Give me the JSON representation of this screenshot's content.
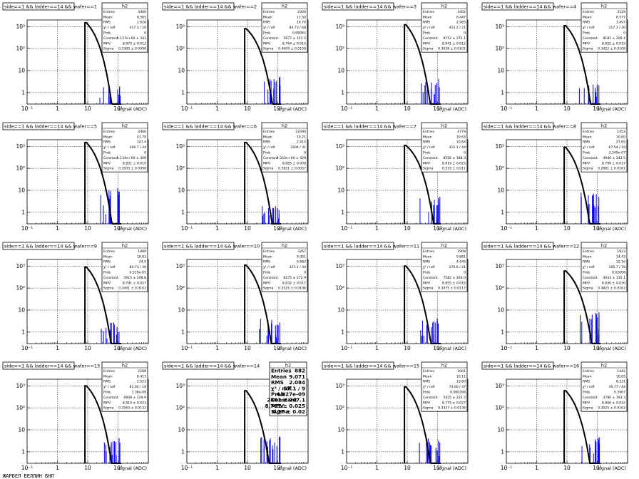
{
  "footer_text": "ЖАРБЕЛ БЕЛЛИН БНЛ",
  "chart_data": [
    {
      "type": "histogram",
      "title": "side==1 && ladder==14 && wafer==1",
      "stats_title": "h2",
      "xlabel": "signal (ADC)",
      "x_scale": "log",
      "y_scale": "log",
      "xlim": [
        0.1,
        1000
      ],
      "ylim": [
        0.3,
        2000
      ],
      "grid": true,
      "stats": [
        [
          "Entries",
          "4400"
        ],
        [
          "Mean",
          "8.565"
        ],
        [
          "RMS",
          "2.628"
        ],
        [
          "χ² / ndf",
          "417.3 / 26"
        ],
        [
          "Prob",
          "0"
        ],
        [
          "Constant",
          "1.127e+04 ± 341"
        ],
        [
          "MPV",
          "8.873 ± 0.012"
        ],
        [
          "Sigma",
          "0.3385 ± 0.0090"
        ]
      ],
      "fit": {
        "mpv": 9.0,
        "sigma": 0.34,
        "peak": 1500
      },
      "tail": [
        [
          8,
          0.6
        ],
        [
          8.8,
          0.1
        ]
      ]
    },
    {
      "type": "histogram",
      "title": "side==1 && ladder==14 && wafer==2",
      "stats_title": "h2",
      "xlabel": "signal (ADC)",
      "x_scale": "log",
      "y_scale": "log",
      "xlim": [
        0.1,
        1000
      ],
      "ylim": [
        0.3,
        2000
      ],
      "grid": true,
      "stats": [
        [
          "Entries",
          "2300"
        ],
        [
          "Mean",
          "11.50"
        ],
        [
          "RMS",
          "10.70"
        ],
        [
          "χ² / ndf",
          "84.73 / 68"
        ],
        [
          "Prob",
          "0.08062"
        ],
        [
          "Constant",
          "5877 ± 151.5"
        ],
        [
          "MPV",
          "8.764 ± 0.015"
        ],
        [
          "Sigma",
          "0.4609 ± 0.0150"
        ]
      ],
      "fit": {
        "mpv": 9.0,
        "sigma": 0.46,
        "peak": 800
      },
      "tail": [
        [
          8,
          2
        ],
        [
          14,
          0.2
        ]
      ]
    },
    {
      "type": "histogram",
      "title": "side==1 && ladder==14 && wafer==3",
      "stats_title": "h2",
      "xlabel": "signal (ADC)",
      "x_scale": "log",
      "y_scale": "log",
      "xlim": [
        0.1,
        1000
      ],
      "ylim": [
        0.3,
        2000
      ],
      "grid": true,
      "stats": [
        [
          "Entries",
          "3402"
        ],
        [
          "Mean",
          "8.447"
        ],
        [
          "RMS",
          "2.985"
        ],
        [
          "χ² / ndf",
          "413.2 / 21"
        ],
        [
          "Prob",
          "0"
        ],
        [
          "Constant",
          "9712 ± 272.1"
        ],
        [
          "MPV",
          "8.941 ± 0.012"
        ],
        [
          "Sigma",
          "0.3038 ± 0.0101"
        ]
      ],
      "fit": {
        "mpv": 9.0,
        "sigma": 0.3,
        "peak": 1200
      },
      "tail": [
        [
          8,
          1.5
        ],
        [
          12,
          0.15
        ]
      ]
    },
    {
      "type": "histogram",
      "title": "side==1 && ladder==14 && wafer==4",
      "stats_title": "h2",
      "xlabel": "signal (ADC)",
      "x_scale": "log",
      "y_scale": "log",
      "xlim": [
        0.1,
        1000
      ],
      "ylim": [
        0.3,
        2000
      ],
      "grid": true,
      "stats": [
        [
          "Entries",
          "3129"
        ],
        [
          "Mean",
          "8.577"
        ],
        [
          "RMS",
          "3.497"
        ],
        [
          "χ² / ndf",
          "217.3 / 26"
        ],
        [
          "Prob",
          "0"
        ],
        [
          "Constant",
          "8181 ± 209.4"
        ],
        [
          "MPV",
          "8.855 ± 0.015"
        ],
        [
          "Sigma",
          "0.3422 ± 0.0108"
        ]
      ],
      "fit": {
        "mpv": 9.0,
        "sigma": 0.34,
        "peak": 1100
      },
      "tail": [
        [
          8,
          1
        ],
        [
          12,
          0.1
        ]
      ]
    },
    {
      "type": "histogram",
      "title": "side==1 && ladder==14 && wafer==5",
      "stats_title": "h2",
      "xlabel": "signal (ADC)",
      "x_scale": "log",
      "y_scale": "log",
      "xlim": [
        0.1,
        1000
      ],
      "ylim": [
        0.3,
        2000
      ],
      "grid": true,
      "stats": [
        [
          "Entries",
          "4466"
        ],
        [
          "Mean",
          "41.79"
        ],
        [
          "RMS",
          "147.4"
        ],
        [
          "χ² / ndf",
          "306.7 / 44"
        ],
        [
          "Prob",
          "0"
        ],
        [
          "Constant",
          "1.134e+04 ± 309"
        ],
        [
          "MPV",
          "8.851 ± 0.010"
        ],
        [
          "Sigma",
          "0.3505 ± 0.0090"
        ]
      ],
      "fit": {
        "mpv": 9.0,
        "sigma": 0.35,
        "peak": 1500
      },
      "tail": [
        [
          8,
          5
        ],
        [
          8.8,
          0.4
        ]
      ]
    },
    {
      "type": "histogram",
      "title": "side==1 && ladder==14 && wafer==6",
      "stats_title": "h2",
      "xlabel": "signal (ADC)",
      "x_scale": "log",
      "y_scale": "log",
      "xlim": [
        0.1,
        1000
      ],
      "ylim": [
        0.3,
        2000
      ],
      "grid": true,
      "stats": [
        [
          "Entries",
          "12094"
        ],
        [
          "Mean",
          "10.21"
        ],
        [
          "RMS",
          "2.615"
        ],
        [
          "χ² / ndf",
          "3306 / 31"
        ],
        [
          "Prob",
          "0"
        ],
        [
          "Constant",
          "2.353e+04 ± 429"
        ],
        [
          "MPV",
          "8.885 ± 0.008"
        ],
        [
          "Sigma",
          "0.3821 ± 0.0057"
        ]
      ],
      "fit": {
        "mpv": 9.0,
        "sigma": 0.38,
        "peak": 1500
      },
      "tail": [
        [
          8,
          0.6
        ],
        [
          9.5,
          0.1
        ]
      ]
    },
    {
      "type": "histogram",
      "title": "side==1 && ladder==14 && wafer==7",
      "stats_title": "h2",
      "xlabel": "signal (ADC)",
      "x_scale": "log",
      "y_scale": "log",
      "xlim": [
        0.1,
        1000
      ],
      "ylim": [
        0.3,
        2000
      ],
      "grid": true,
      "stats": [
        [
          "Entries",
          "4779"
        ],
        [
          "Mean",
          "10.63"
        ],
        [
          "RMS",
          "10.84"
        ],
        [
          "χ² / ndf",
          "315.1 / 44"
        ],
        [
          "Prob",
          "0"
        ],
        [
          "Constant",
          "8556 ± 188.3"
        ],
        [
          "MPV",
          "8.919 ± 0.025"
        ],
        [
          "Sigma",
          "0.533 ± 0.011"
        ]
      ],
      "fit": {
        "mpv": 9.0,
        "sigma": 0.53,
        "peak": 1100
      },
      "tail": [
        [
          8,
          2
        ],
        [
          20,
          0.2
        ]
      ]
    },
    {
      "type": "histogram",
      "title": "side==1 && ladder==14 && wafer==8",
      "stats_title": "h2",
      "xlabel": "signal (ADC)",
      "x_scale": "log",
      "y_scale": "log",
      "xlim": [
        0.1,
        1000
      ],
      "ylim": [
        0.3,
        2000
      ],
      "grid": true,
      "stats": [
        [
          "Entries",
          "1453"
        ],
        [
          "Mean",
          "10.60"
        ],
        [
          "RMS",
          "27.65"
        ],
        [
          "χ² / ndf",
          "67.54 / 19"
        ],
        [
          "Prob",
          "2.349e-07"
        ],
        [
          "Constant",
          "4940 ± 243.5"
        ],
        [
          "MPV",
          "8.799 ± 0.017"
        ],
        [
          "Sigma",
          "0.2981 ± 0.0161"
        ]
      ],
      "fit": {
        "mpv": 9.0,
        "sigma": 0.3,
        "peak": 900
      },
      "tail": [
        [
          8,
          3
        ],
        [
          12,
          0.2
        ]
      ]
    },
    {
      "type": "histogram",
      "title": "side==1 && ladder==14 && wafer==9",
      "stats_title": "h2",
      "xlabel": "signal (ADC)",
      "x_scale": "log",
      "y_scale": "log",
      "xlim": [
        0.1,
        1000
      ],
      "ylim": [
        0.3,
        2000
      ],
      "grid": true,
      "stats": [
        [
          "Entries",
          "1899"
        ],
        [
          "Mean",
          "18.62"
        ],
        [
          "RMS",
          "24.0"
        ],
        [
          "χ² / ndf",
          "80.73 / 36"
        ],
        [
          "Prob",
          "6.519e-05"
        ],
        [
          "Constant",
          "5915 ± 208.8"
        ],
        [
          "MPV",
          "8.791 ± 0.027"
        ],
        [
          "Sigma",
          "0.3441 ± 0.0162"
        ]
      ],
      "fit": {
        "mpv": 9.0,
        "sigma": 0.34,
        "peak": 900
      },
      "tail": [
        [
          8,
          1
        ],
        [
          25,
          0.1
        ]
      ]
    },
    {
      "type": "histogram",
      "title": "side==1 && ladder==14 && wafer==10",
      "stats_title": "h2",
      "xlabel": "signal (ADC)",
      "x_scale": "log",
      "y_scale": "log",
      "xlim": [
        0.1,
        1000
      ],
      "ylim": [
        0.3,
        2000
      ],
      "grid": true,
      "stats": [
        [
          "Entries",
          "3267"
        ],
        [
          "Mean",
          "9.951"
        ],
        [
          "RMS",
          "6.682"
        ],
        [
          "χ² / ndf",
          "327.1 / 44"
        ],
        [
          "Prob",
          "0"
        ],
        [
          "Constant",
          "8275 ± 272.9"
        ],
        [
          "MPV",
          "8.832 ± 0.017"
        ],
        [
          "Sigma",
          "0.3525 ± 0.0106"
        ]
      ],
      "fit": {
        "mpv": 9.0,
        "sigma": 0.35,
        "peak": 1100
      },
      "tail": [
        [
          8,
          1.5
        ],
        [
          20,
          0.15
        ]
      ]
    },
    {
      "type": "histogram",
      "title": "side==1 && ladder==14 && wafer==11",
      "stats_title": "h2",
      "xlabel": "signal (ADC)",
      "x_scale": "log",
      "y_scale": "log",
      "xlim": [
        0.1,
        1000
      ],
      "ylim": [
        0.3,
        2000
      ],
      "grid": true,
      "stats": [
        [
          "Entries",
          "2908"
        ],
        [
          "Mean",
          "9.681"
        ],
        [
          "RMS",
          "4.045"
        ],
        [
          "χ² / ndf",
          "270.6 / 21"
        ],
        [
          "Prob",
          "0"
        ],
        [
          "Constant",
          "7582 ± 266.0"
        ],
        [
          "MPV",
          "8.855 ± 0.016"
        ],
        [
          "Sigma",
          "0.3475 ± 0.0117"
        ]
      ],
      "fit": {
        "mpv": 9.0,
        "sigma": 0.35,
        "peak": 1000
      },
      "tail": [
        [
          8,
          1.5
        ],
        [
          15,
          0.15
        ]
      ]
    },
    {
      "type": "histogram",
      "title": "side==1 && ladder==14 && wafer==12",
      "stats_title": "h2",
      "xlabel": "signal (ADC)",
      "x_scale": "log",
      "y_scale": "log",
      "xlim": [
        0.1,
        1000
      ],
      "ylim": [
        0.3,
        2000
      ],
      "grid": true,
      "stats": [
        [
          "Entries",
          "1923"
        ],
        [
          "Mean",
          "14.43"
        ],
        [
          "RMS",
          "32.16"
        ],
        [
          "χ² / ndf",
          "105.7 / 78"
        ],
        [
          "Prob",
          "0.02008"
        ],
        [
          "Constant",
          "4033 ± 135.1"
        ],
        [
          "MPV",
          "8.830 ± 0.030"
        ],
        [
          "Sigma",
          "0.4825 ± 0.0162"
        ]
      ],
      "fit": {
        "mpv": 9.0,
        "sigma": 0.48,
        "peak": 600
      },
      "tail": [
        [
          8,
          3
        ],
        [
          30,
          0.5
        ]
      ]
    },
    {
      "type": "histogram",
      "title": "side==1 && ladder==14 && wafer==13",
      "stats_title": "h2",
      "xlabel": "signal (ADC)",
      "x_scale": "log",
      "y_scale": "log",
      "xlim": [
        0.1,
        1000
      ],
      "ylim": [
        0.3,
        2000
      ],
      "grid": true,
      "stats": [
        [
          "Entries",
          "2268"
        ],
        [
          "Mean",
          "8.417"
        ],
        [
          "RMS",
          "2.521"
        ],
        [
          "χ² / ndf",
          "81.04 / 19"
        ],
        [
          "Prob",
          "1.38e-09"
        ],
        [
          "Constant",
          "6908 ± 229.9"
        ],
        [
          "MPV",
          "8.810 ± 0.023"
        ],
        [
          "Sigma",
          "0.3565 ± 0.0132"
        ]
      ],
      "fit": {
        "mpv": 9.0,
        "sigma": 0.36,
        "peak": 1000
      },
      "tail": [
        [
          8,
          1.5
        ],
        [
          10,
          0.15
        ]
      ]
    },
    {
      "type": "histogram",
      "title": "side==1 && ladder==14 && wafer==14",
      "stats_title": "h2",
      "xlabel": "signal (ADC)",
      "x_scale": "log",
      "y_scale": "log",
      "xlim": [
        0.1,
        1000
      ],
      "ylim": [
        0.3,
        2000
      ],
      "grid": true,
      "stats": [
        [
          "Entries",
          "882"
        ],
        [
          "Mean",
          "9.071"
        ],
        [
          "RMS",
          "2.084"
        ],
        [
          "χ² / ndf",
          "57.1 / 9"
        ],
        [
          "Prob",
          "4.827e-09"
        ],
        [
          "Constant",
          "2801 ± 247.1"
        ],
        [
          "MPV",
          "8.781 ± 0.025"
        ],
        [
          "Sigma",
          "0.27 ± 0.02"
        ]
      ],
      "fit": {
        "mpv": 9.0,
        "sigma": 0.27,
        "peak": 600
      },
      "tail": [
        [
          8,
          2
        ],
        [
          9.5,
          0.2
        ]
      ],
      "big_stats": true
    },
    {
      "type": "histogram",
      "title": "side==1 && ladder==14 && wafer==15",
      "stats_title": "h2",
      "xlabel": "signal (ADC)",
      "x_scale": "log",
      "y_scale": "log",
      "xlim": [
        0.1,
        1000
      ],
      "ylim": [
        0.3,
        2000
      ],
      "grid": true,
      "stats": [
        [
          "Entries",
          "2001"
        ],
        [
          "Mean",
          "10.11"
        ],
        [
          "RMS",
          "13.60"
        ],
        [
          "χ² / ndf",
          "74.00 / 37"
        ],
        [
          "Prob",
          "0.000298"
        ],
        [
          "Constant",
          "5435 ± 222.5"
        ],
        [
          "MPV",
          "8.775 ± 0.027"
        ],
        [
          "Sigma",
          "0.3337 ± 0.0136"
        ]
      ],
      "fit": {
        "mpv": 9.0,
        "sigma": 0.33,
        "peak": 900
      },
      "tail": [
        [
          8,
          1.5
        ],
        [
          20,
          0.15
        ]
      ]
    },
    {
      "type": "histogram",
      "title": "side==1 && ladder==14 && wafer==16",
      "stats_title": "h2",
      "xlabel": "signal (ADC)",
      "x_scale": "log",
      "y_scale": "log",
      "xlim": [
        0.1,
        1000
      ],
      "ylim": [
        0.3,
        2000
      ],
      "grid": true,
      "stats": [
        [
          "Entries",
          "1442"
        ],
        [
          "Mean",
          "10.65"
        ],
        [
          "RMS",
          "8.231"
        ],
        [
          "χ² / ndf",
          "45.77 / 44"
        ],
        [
          "Prob",
          "0.3967"
        ],
        [
          "Constant",
          "3780 ± 193.3"
        ],
        [
          "MPV",
          "8.806 ± 0.032"
        ],
        [
          "Sigma",
          "0.3525 ± 0.0162"
        ]
      ],
      "fit": {
        "mpv": 9.0,
        "sigma": 0.35,
        "peak": 600
      },
      "tail": [
        [
          8,
          2
        ],
        [
          30,
          0.3
        ]
      ]
    }
  ]
}
